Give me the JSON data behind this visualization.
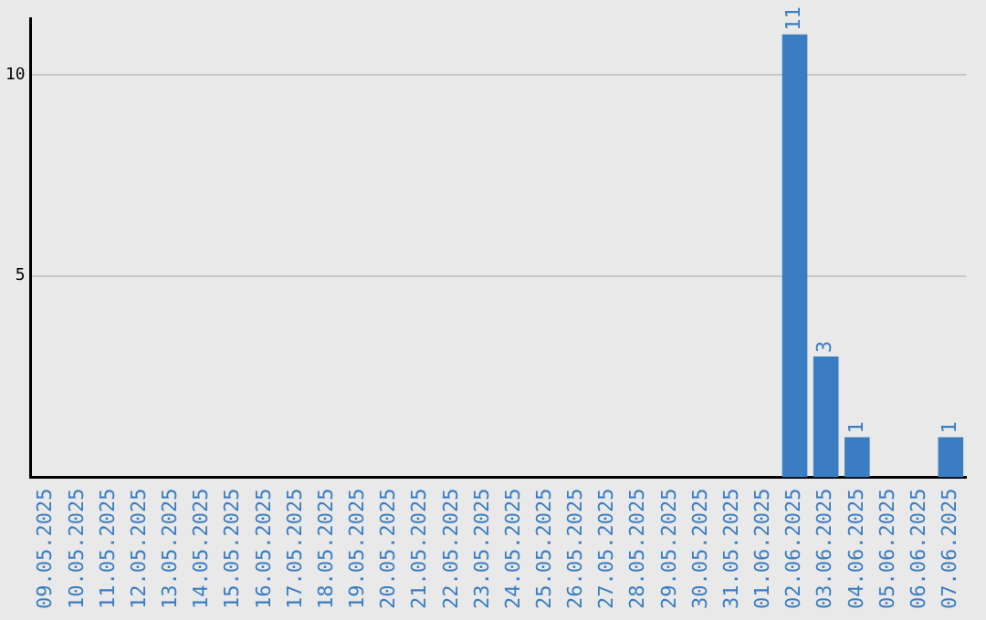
{
  "chart_data": {
    "type": "bar",
    "categories": [
      "09.05.2025",
      "10.05.2025",
      "11.05.2025",
      "12.05.2025",
      "13.05.2025",
      "14.05.2025",
      "15.05.2025",
      "16.05.2025",
      "17.05.2025",
      "18.05.2025",
      "19.05.2025",
      "20.05.2025",
      "21.05.2025",
      "22.05.2025",
      "23.05.2025",
      "24.05.2025",
      "25.05.2025",
      "26.05.2025",
      "27.05.2025",
      "28.05.2025",
      "29.05.2025",
      "30.05.2025",
      "31.05.2025",
      "01.06.2025",
      "02.06.2025",
      "03.06.2025",
      "04.06.2025",
      "05.06.2025",
      "06.06.2025",
      "07.06.2025"
    ],
    "values": [
      0,
      0,
      0,
      0,
      0,
      0,
      0,
      0,
      0,
      0,
      0,
      0,
      0,
      0,
      0,
      0,
      0,
      0,
      0,
      0,
      0,
      0,
      0,
      0,
      11,
      3,
      1,
      0,
      0,
      1
    ],
    "value_labels": [
      null,
      null,
      null,
      null,
      null,
      null,
      null,
      null,
      null,
      null,
      null,
      null,
      null,
      null,
      null,
      null,
      null,
      null,
      null,
      null,
      null,
      null,
      null,
      null,
      "11",
      "3",
      "1",
      null,
      null,
      "1"
    ],
    "color": "#3a7dc2",
    "ylim": [
      0,
      11.4
    ],
    "yticks": [
      5,
      10
    ],
    "grid": "y",
    "legend": false
  }
}
